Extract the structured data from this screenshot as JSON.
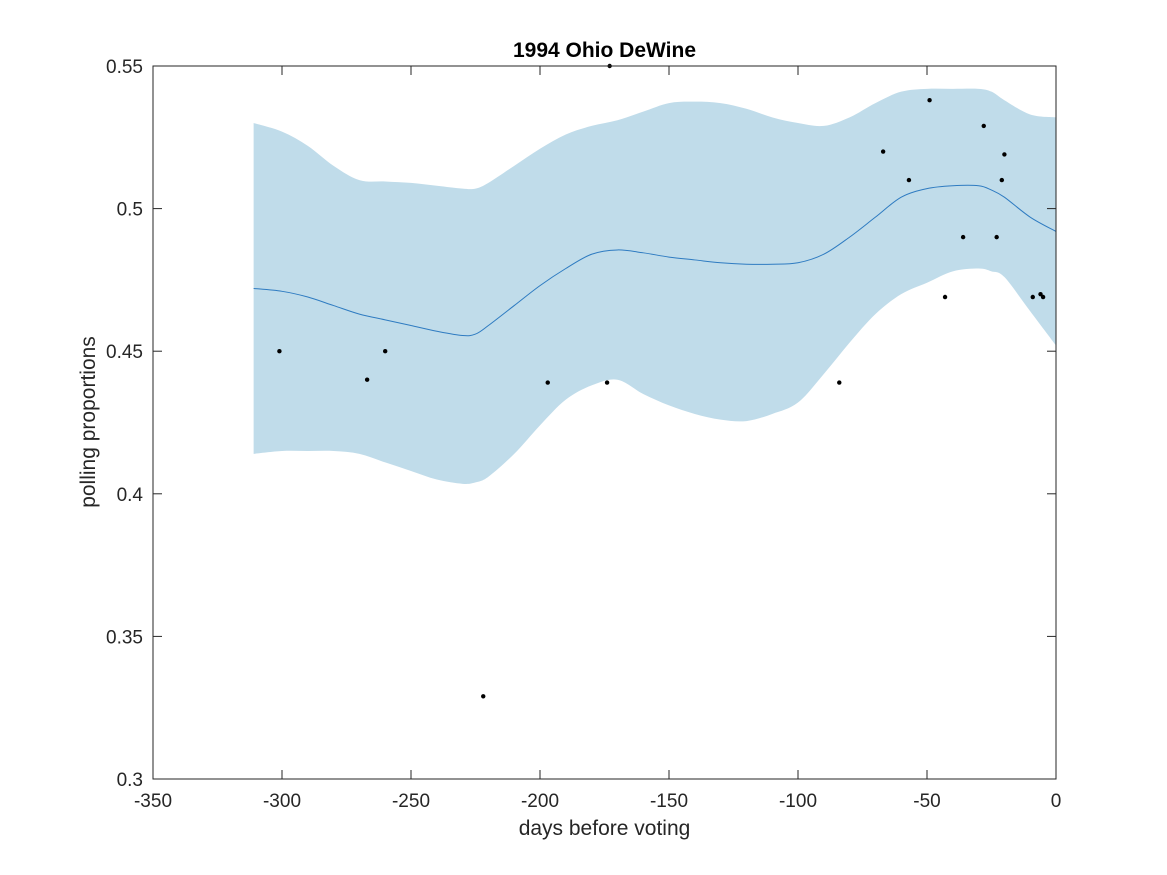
{
  "chart_data": {
    "type": "scatter",
    "title": "1994 Ohio DeWine",
    "xlabel": "days before voting",
    "ylabel": "polling proportions",
    "xlim": [
      -350,
      0
    ],
    "ylim": [
      0.3,
      0.55
    ],
    "xticks": [
      -350,
      -300,
      -250,
      -200,
      -150,
      -100,
      -50,
      0
    ],
    "xtick_labels": [
      "-350",
      "-300",
      "-250",
      "-200",
      "-150",
      "-100",
      "-50",
      "0"
    ],
    "yticks": [
      0.3,
      0.35,
      0.4,
      0.45,
      0.5,
      0.55
    ],
    "ytick_labels": [
      "0.3",
      "0.35",
      "0.4",
      "0.45",
      "0.5",
      "0.55"
    ],
    "grid": false,
    "colors": {
      "band": "#c0dcea",
      "line": "#2e7bc1",
      "points": "#000000"
    },
    "points": [
      {
        "x": -301,
        "y": 0.45
      },
      {
        "x": -267,
        "y": 0.44
      },
      {
        "x": -260,
        "y": 0.45
      },
      {
        "x": -222,
        "y": 0.329
      },
      {
        "x": -197,
        "y": 0.439
      },
      {
        "x": -174,
        "y": 0.439
      },
      {
        "x": -173,
        "y": 0.55
      },
      {
        "x": -84,
        "y": 0.439
      },
      {
        "x": -67,
        "y": 0.52
      },
      {
        "x": -57,
        "y": 0.51
      },
      {
        "x": -49,
        "y": 0.538
      },
      {
        "x": -43,
        "y": 0.469
      },
      {
        "x": -36,
        "y": 0.49
      },
      {
        "x": -28,
        "y": 0.529
      },
      {
        "x": -23,
        "y": 0.49
      },
      {
        "x": -21,
        "y": 0.51
      },
      {
        "x": -20,
        "y": 0.519
      },
      {
        "x": -9,
        "y": 0.469
      },
      {
        "x": -6,
        "y": 0.47
      },
      {
        "x": -5,
        "y": 0.469
      }
    ],
    "trend": {
      "x": [
        -311,
        -300,
        -290,
        -280,
        -270,
        -260,
        -250,
        -240,
        -230,
        -225,
        -220,
        -210,
        -200,
        -190,
        -180,
        -170,
        -160,
        -150,
        -140,
        -130,
        -120,
        -110,
        -100,
        -90,
        -80,
        -70,
        -60,
        -50,
        -40,
        -30,
        -25,
        -20,
        -10,
        0
      ],
      "mean": [
        0.472,
        0.471,
        0.469,
        0.466,
        0.463,
        0.461,
        0.459,
        0.457,
        0.4555,
        0.456,
        0.459,
        0.466,
        0.473,
        0.479,
        0.484,
        0.4855,
        0.4845,
        0.483,
        0.482,
        0.481,
        0.4805,
        0.4805,
        0.481,
        0.484,
        0.49,
        0.497,
        0.504,
        0.507,
        0.508,
        0.508,
        0.5065,
        0.504,
        0.497,
        0.492
      ],
      "upper": [
        0.53,
        0.527,
        0.522,
        0.515,
        0.51,
        0.5095,
        0.509,
        0.508,
        0.507,
        0.507,
        0.509,
        0.515,
        0.521,
        0.526,
        0.529,
        0.531,
        0.534,
        0.537,
        0.5375,
        0.537,
        0.535,
        0.532,
        0.53,
        0.529,
        0.532,
        0.537,
        0.541,
        0.542,
        0.542,
        0.542,
        0.541,
        0.538,
        0.533,
        0.532
      ],
      "lower": [
        0.414,
        0.415,
        0.415,
        0.415,
        0.414,
        0.411,
        0.408,
        0.405,
        0.4035,
        0.404,
        0.406,
        0.414,
        0.424,
        0.433,
        0.438,
        0.44,
        0.435,
        0.431,
        0.428,
        0.426,
        0.4255,
        0.428,
        0.432,
        0.442,
        0.453,
        0.463,
        0.47,
        0.474,
        0.478,
        0.479,
        0.478,
        0.476,
        0.464,
        0.452
      ]
    }
  }
}
